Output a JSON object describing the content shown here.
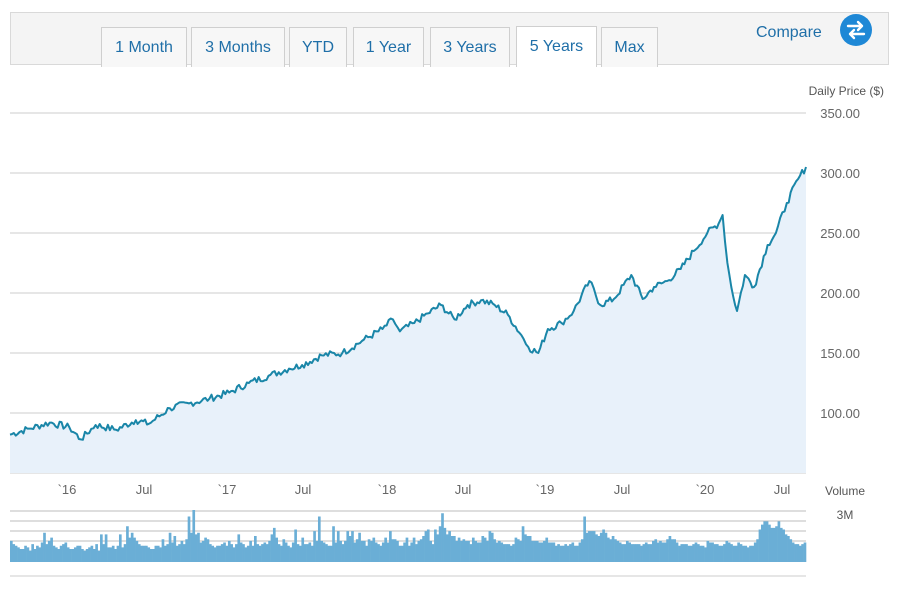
{
  "range_tabs": [
    {
      "label": "1 Month",
      "active": false
    },
    {
      "label": "3 Months",
      "active": false
    },
    {
      "label": "YTD",
      "active": false
    },
    {
      "label": "1 Year",
      "active": false
    },
    {
      "label": "3 Years",
      "active": false
    },
    {
      "label": "5 Years",
      "active": true
    },
    {
      "label": "Max",
      "active": false
    }
  ],
  "compare": {
    "label": "Compare",
    "icon": "swap-arrows-icon",
    "icon_color": "#1e88d6"
  },
  "colors": {
    "line": "#1a86a8",
    "area": "#e8f1fa",
    "volume": "#6aaed6",
    "grid": "#cccccc",
    "link": "#1f6fa8"
  },
  "chart_data": [
    {
      "type": "area",
      "ylabel": "Daily Price ($)",
      "ylim": [
        50,
        350
      ],
      "y_ticks": [
        "350.00",
        "300.00",
        "250.00",
        "200.00",
        "150.00",
        "100.00"
      ],
      "x_ticks": [
        "`16",
        "Jul",
        "`17",
        "Jul",
        "`18",
        "Jul",
        "`19",
        "Jul",
        "`20",
        "Jul"
      ],
      "x": [
        "2015-09-01",
        "2015-10-15",
        "2015-12-01",
        "2016-01-15",
        "2016-02-10",
        "2016-03-15",
        "2016-05-01",
        "2016-06-15",
        "2016-07-15",
        "2016-09-01",
        "2016-10-15",
        "2016-12-01",
        "2017-01-15",
        "2017-03-01",
        "2017-04-15",
        "2017-06-01",
        "2017-07-01",
        "2017-08-15",
        "2017-10-01",
        "2017-11-15",
        "2018-01-01",
        "2018-01-25",
        "2018-02-10",
        "2018-03-15",
        "2018-04-15",
        "2018-05-15",
        "2018-06-15",
        "2018-07-15",
        "2018-08-15",
        "2018-09-15",
        "2018-10-15",
        "2018-11-15",
        "2018-12-01",
        "2018-12-24",
        "2019-01-15",
        "2019-02-15",
        "2019-03-15",
        "2019-04-20",
        "2019-05-15",
        "2019-06-15",
        "2019-07-25",
        "2019-08-20",
        "2019-09-15",
        "2019-10-15",
        "2019-11-15",
        "2019-12-15",
        "2020-01-15",
        "2020-02-10",
        "2020-02-19",
        "2020-03-01",
        "2020-03-10",
        "2020-03-23",
        "2020-04-10",
        "2020-05-01",
        "2020-06-01",
        "2020-06-20",
        "2020-07-15",
        "2020-08-10",
        "2020-08-28"
      ],
      "series": [
        {
          "values": [
            82,
            87,
            92,
            88,
            78,
            90,
            86,
            94,
            91,
            104,
            108,
            112,
            117,
            125,
            131,
            137,
            140,
            148,
            150,
            160,
            170,
            178,
            168,
            175,
            183,
            190,
            178,
            190,
            194,
            190,
            182,
            165,
            155,
            150,
            170,
            175,
            185,
            210,
            190,
            195,
            215,
            195,
            205,
            210,
            220,
            235,
            250,
            258,
            265,
            225,
            205,
            185,
            215,
            205,
            240,
            250,
            275,
            295,
            305
          ]
        }
      ]
    },
    {
      "type": "bar",
      "ylabel": "Volume",
      "y_ticks": [
        "3M"
      ],
      "values": [
        1.3,
        1.1,
        1.0,
        0.9,
        0.8,
        0.8,
        1.0,
        0.9,
        0.7,
        1.1,
        0.8,
        1.0,
        0.9,
        1.2,
        1.8,
        1.1,
        1.3,
        1.5,
        1.0,
        0.9,
        0.8,
        1.0,
        1.1,
        1.2,
        0.9,
        0.8,
        0.8,
        0.9,
        1.0,
        1.0,
        0.8,
        0.7,
        0.8,
        0.9,
        1.0,
        0.8,
        1.1,
        0.7,
        1.7,
        1.1,
        1.7,
        0.9,
        0.9,
        1.0,
        0.8,
        1.0,
        1.7,
        0.9,
        1.1,
        2.2,
        1.5,
        1.8,
        1.5,
        1.3,
        1.1,
        1.0,
        1.0,
        1.0,
        0.9,
        0.8,
        0.8,
        1.0,
        1.0,
        0.9,
        1.4,
        1.0,
        1.1,
        1.8,
        1.2,
        1.6,
        1.0,
        1.1,
        1.3,
        1.1,
        1.4,
        2.8,
        1.8,
        3.2,
        1.7,
        1.8,
        1.2,
        1.3,
        1.5,
        1.4,
        1.1,
        1.0,
        0.9,
        1.0,
        1.0,
        1.1,
        1.2,
        1.0,
        1.3,
        1.1,
        0.9,
        1.1,
        1.7,
        1.2,
        1.1,
        0.9,
        1.0,
        1.3,
        1.0,
        1.6,
        1.1,
        1.0,
        1.1,
        1.2,
        1.1,
        1.3,
        1.7,
        2.1,
        1.5,
        1.1,
        1.0,
        1.4,
        1.2,
        1.0,
        0.9,
        1.2,
        2.0,
        1.1,
        1.0,
        1.5,
        1.1,
        1.1,
        1.2,
        1.0,
        1.9,
        1.3,
        2.8,
        1.3,
        1.2,
        1.1,
        1.0,
        1.0,
        2.2,
        1.2,
        1.9,
        1.3,
        1.1,
        1.3,
        1.9,
        1.6,
        1.9,
        1.2,
        1.4,
        1.8,
        1.3,
        1.3,
        1.0,
        1.4,
        1.3,
        1.5,
        1.2,
        1.1,
        1.0,
        1.2,
        1.5,
        1.2,
        1.9,
        1.4,
        1.4,
        1.3,
        1.0,
        1.0,
        1.2,
        1.5,
        1.0,
        1.2,
        1.5,
        1.1,
        1.3,
        1.4,
        1.6,
        1.9,
        2.0,
        1.3,
        1.1,
        2.0,
        1.7,
        2.2,
        3.0,
        2.1,
        1.7,
        1.9,
        1.6,
        1.6,
        1.3,
        1.5,
        1.3,
        1.4,
        1.3,
        1.3,
        1.1,
        1.5,
        1.3,
        1.2,
        1.2,
        1.6,
        1.5,
        1.3,
        1.9,
        1.8,
        1.4,
        1.2,
        1.3,
        1.2,
        1.1,
        1.1,
        1.1,
        1.0,
        1.1,
        1.5,
        1.4,
        1.3,
        2.2,
        1.7,
        1.6,
        1.6,
        1.3,
        1.3,
        1.3,
        1.2,
        1.2,
        1.3,
        1.5,
        1.2,
        1.2,
        1.2,
        1.0,
        1.1,
        1.0,
        1.0,
        1.1,
        1.0,
        1.1,
        1.2,
        1.0,
        1.0,
        1.2,
        1.4,
        2.8,
        1.8,
        1.9,
        1.9,
        1.9,
        1.7,
        1.6,
        1.8,
        2.0,
        1.8,
        1.5,
        1.4,
        1.6,
        1.4,
        1.3,
        1.2,
        1.1,
        1.1,
        1.3,
        1.2,
        1.1,
        1.1,
        1.1,
        1.1,
        1.0,
        1.1,
        1.2,
        1.1,
        1.1,
        1.3,
        1.4,
        1.2,
        1.3,
        1.2,
        1.2,
        1.4,
        1.6,
        1.4,
        1.4,
        1.2,
        1.0,
        1.1,
        1.1,
        1.1,
        1.0,
        1.0,
        1.1,
        1.2,
        1.1,
        1.0,
        1.0,
        0.9,
        1.3,
        1.2,
        1.2,
        1.1,
        1.1,
        1.0,
        1.0,
        1.1,
        1.3,
        1.2,
        1.1,
        1.0,
        1.0,
        1.2,
        1.1,
        1.0,
        1.0,
        0.9,
        1.0,
        1.0,
        1.2,
        1.4,
        2.0,
        2.3,
        2.5,
        2.5,
        2.3,
        2.1,
        2.1,
        2.2,
        2.5,
        2.1,
        2.0,
        1.7,
        1.6,
        1.4,
        1.2,
        1.1,
        1.1,
        1.0,
        1.1,
        1.2
      ]
    }
  ]
}
